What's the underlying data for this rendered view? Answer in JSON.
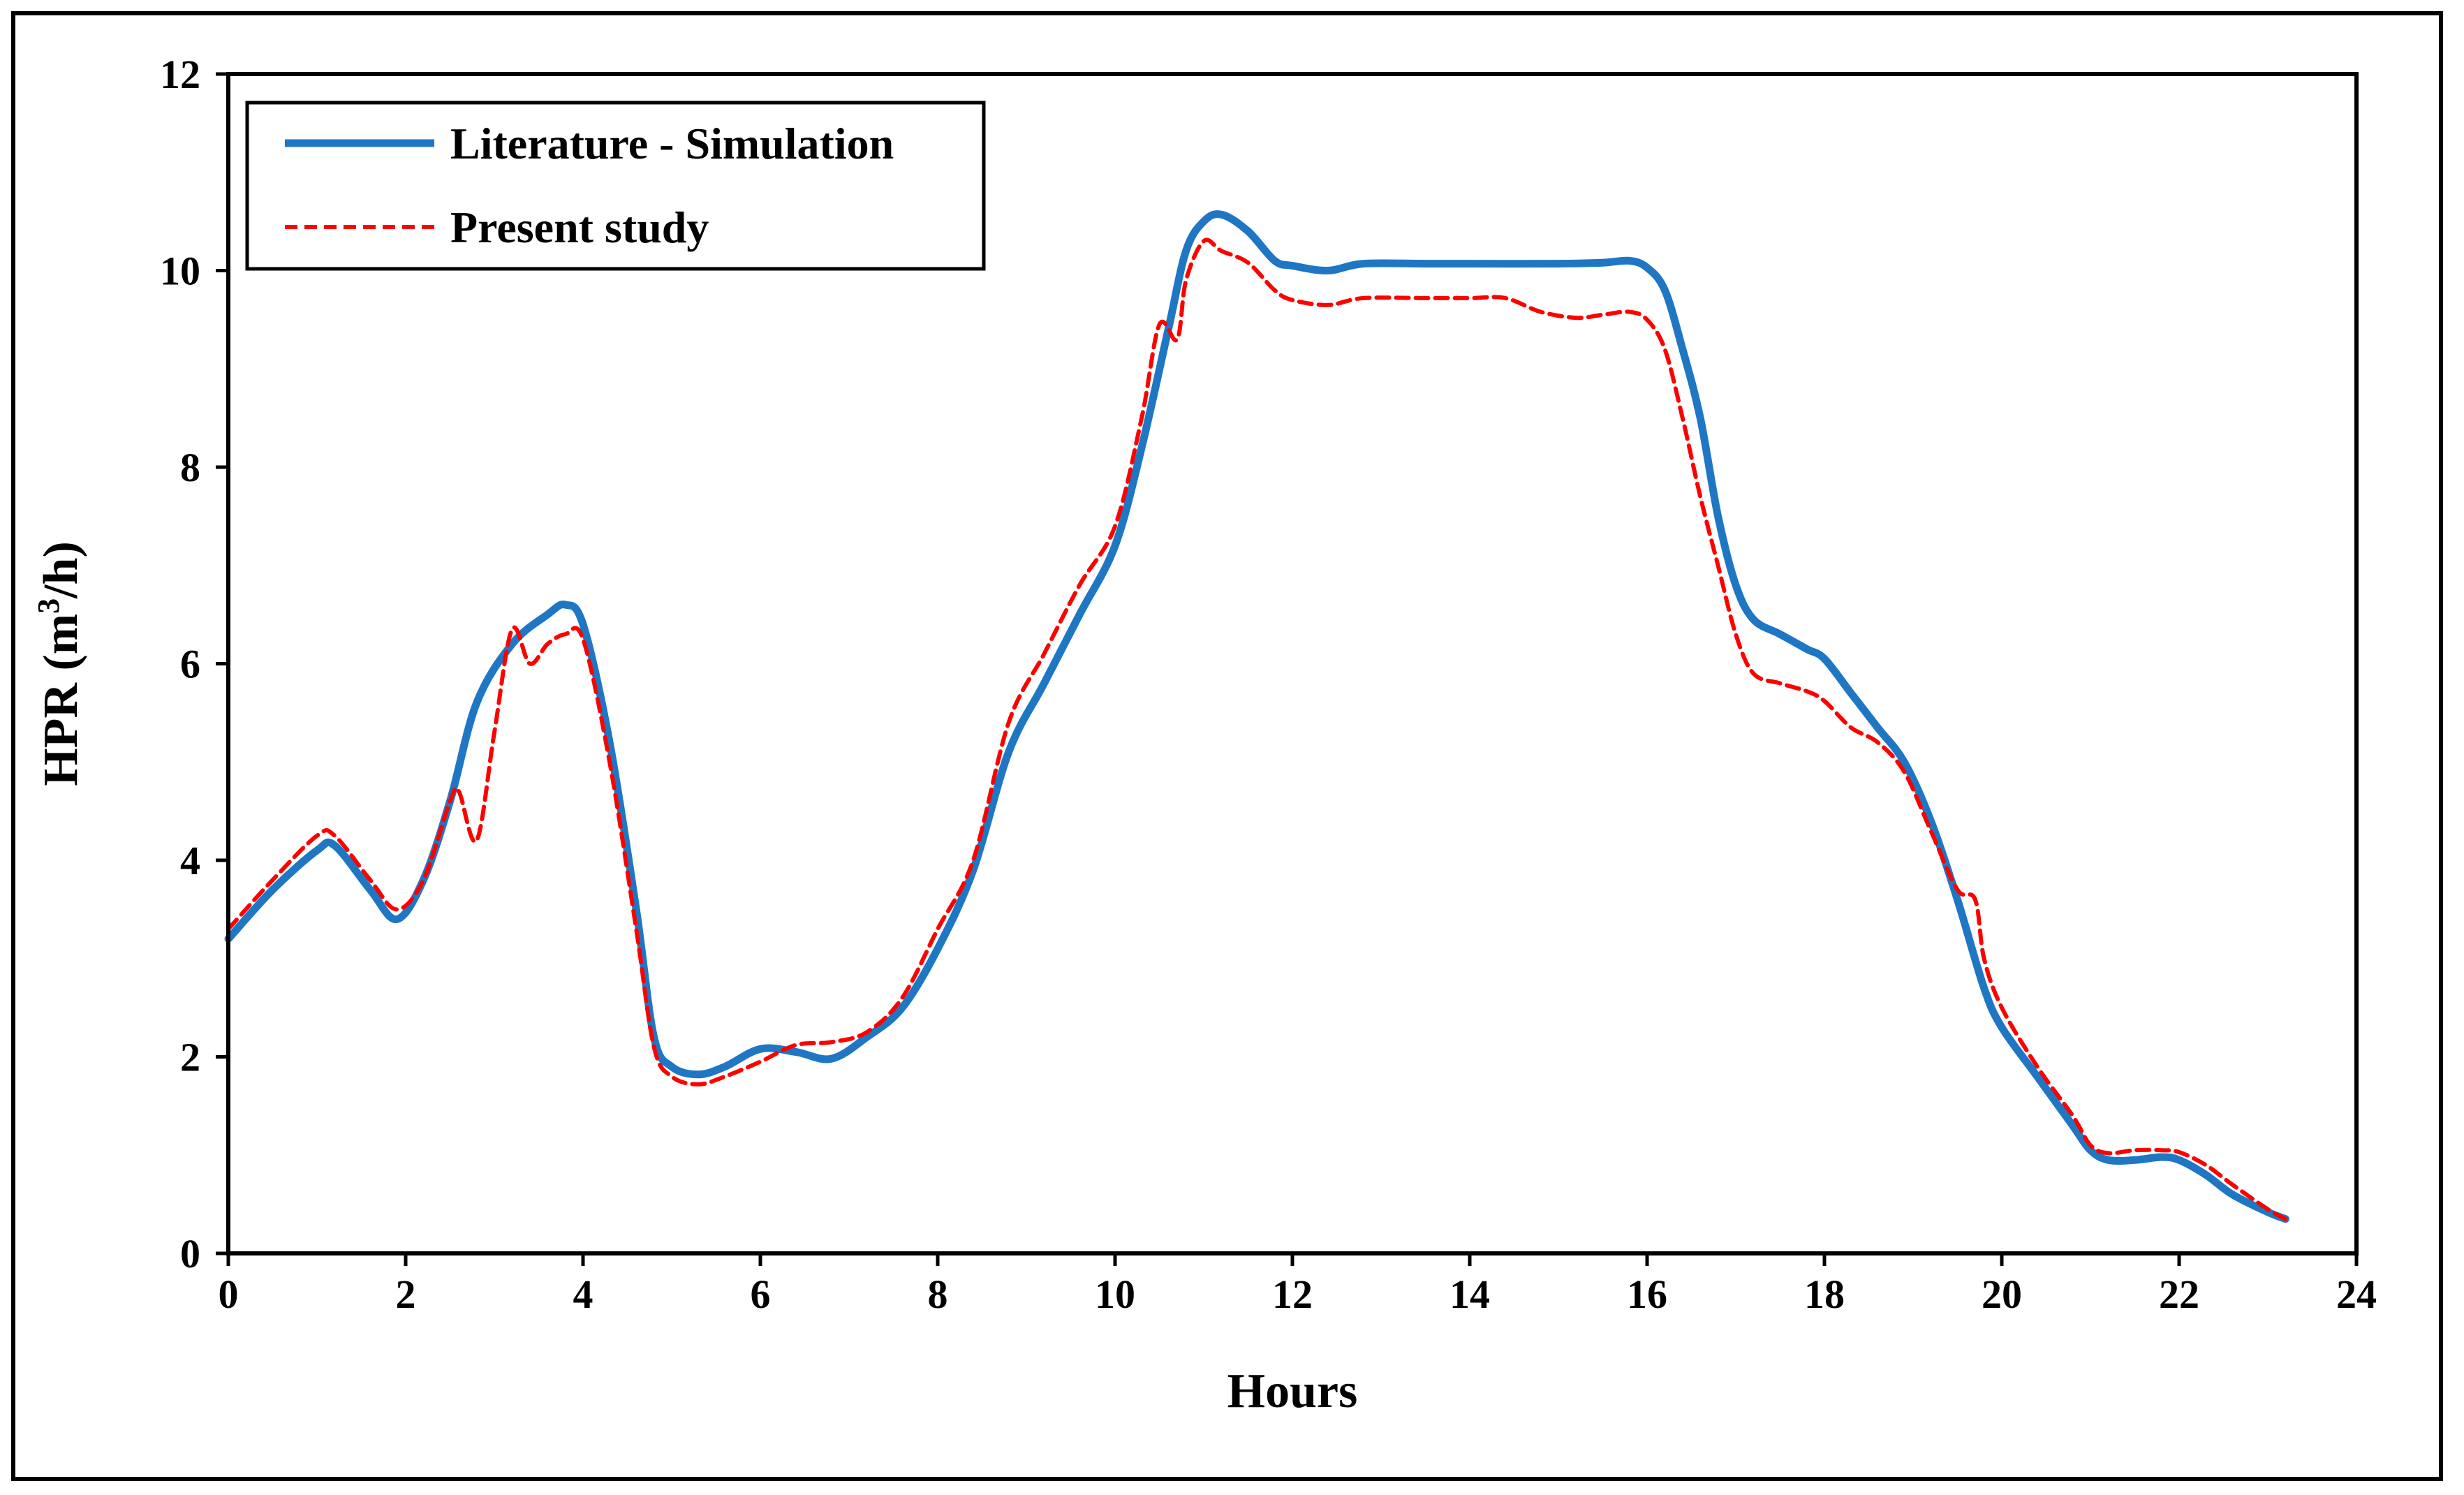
{
  "chart_data": {
    "type": "line",
    "title": "",
    "xlabel": "Hours",
    "ylabel": "HPR (m³/h)",
    "ylabel_main": "HPR (m",
    "ylabel_sup": "3",
    "ylabel_tail": "/h)",
    "xlim": [
      0,
      24
    ],
    "ylim": [
      0,
      12
    ],
    "xticks": [
      0,
      2,
      4,
      6,
      8,
      10,
      12,
      14,
      16,
      18,
      20,
      22,
      24
    ],
    "yticks": [
      0,
      2,
      4,
      6,
      8,
      10,
      12
    ],
    "grid": false,
    "legend_position": "top-left",
    "series": [
      {
        "name": "Literature - Simulation",
        "color": "#1f77c4",
        "style": "solid",
        "x": [
          0,
          0.5,
          1.0,
          1.2,
          1.6,
          1.9,
          2.2,
          2.5,
          2.8,
          3.2,
          3.6,
          3.8,
          4.0,
          4.3,
          4.6,
          4.8,
          5.0,
          5.3,
          5.6,
          6.0,
          6.4,
          6.8,
          7.2,
          7.6,
          8.0,
          8.4,
          8.8,
          9.2,
          9.6,
          10.0,
          10.3,
          10.6,
          10.8,
          11.0,
          11.2,
          11.5,
          11.8,
          12.0,
          12.4,
          12.8,
          13.5,
          14.0,
          15.0,
          15.5,
          15.8,
          16.0,
          16.2,
          16.4,
          16.6,
          16.8,
          17.0,
          17.2,
          17.5,
          17.8,
          18.0,
          18.3,
          18.6,
          18.9,
          19.2,
          19.5,
          19.8,
          20.0,
          20.4,
          20.8,
          21.0,
          21.2,
          21.5,
          21.8,
          22.0,
          22.3,
          22.6,
          23.0,
          23.2
        ],
        "y": [
          3.2,
          3.7,
          4.1,
          4.15,
          3.7,
          3.4,
          3.8,
          4.6,
          5.6,
          6.2,
          6.5,
          6.6,
          6.4,
          5.2,
          3.5,
          2.2,
          1.9,
          1.82,
          1.9,
          2.08,
          2.05,
          1.98,
          2.2,
          2.5,
          3.1,
          3.9,
          5.1,
          5.8,
          6.5,
          7.2,
          8.2,
          9.4,
          10.2,
          10.5,
          10.57,
          10.4,
          10.1,
          10.05,
          10.0,
          10.07,
          10.07,
          10.07,
          10.07,
          10.08,
          10.1,
          10.03,
          9.8,
          9.2,
          8.5,
          7.5,
          6.8,
          6.45,
          6.3,
          6.15,
          6.05,
          5.7,
          5.35,
          5.0,
          4.4,
          3.6,
          2.7,
          2.3,
          1.8,
          1.3,
          1.05,
          0.95,
          0.95,
          0.98,
          0.95,
          0.8,
          0.6,
          0.42,
          0.35
        ]
      },
      {
        "name": "Present study",
        "color": "#ff0000",
        "style": "dashed",
        "x": [
          0,
          0.5,
          1.0,
          1.2,
          1.6,
          1.9,
          2.2,
          2.5,
          2.6,
          2.8,
          3.0,
          3.2,
          3.4,
          3.6,
          3.8,
          4.0,
          4.3,
          4.6,
          4.8,
          5.0,
          5.3,
          5.6,
          6.0,
          6.4,
          6.8,
          7.2,
          7.6,
          8.0,
          8.4,
          8.8,
          9.2,
          9.6,
          10.0,
          10.3,
          10.5,
          10.7,
          10.8,
          11.0,
          11.2,
          11.5,
          11.8,
          12.0,
          12.4,
          12.8,
          13.5,
          14.0,
          14.4,
          14.8,
          15.2,
          15.5,
          15.8,
          16.0,
          16.2,
          16.4,
          16.6,
          16.8,
          17.0,
          17.2,
          17.5,
          17.8,
          18.0,
          18.3,
          18.6,
          18.9,
          19.2,
          19.5,
          19.7,
          19.8,
          20.0,
          20.4,
          20.8,
          21.0,
          21.2,
          21.5,
          21.8,
          22.0,
          22.3,
          22.6,
          23.0,
          23.2
        ],
        "y": [
          3.3,
          3.8,
          4.25,
          4.25,
          3.8,
          3.5,
          3.8,
          4.6,
          4.7,
          4.2,
          5.3,
          6.35,
          6.0,
          6.2,
          6.3,
          6.25,
          5.0,
          3.3,
          2.1,
          1.8,
          1.72,
          1.8,
          1.95,
          2.12,
          2.15,
          2.25,
          2.6,
          3.3,
          4.0,
          5.4,
          6.1,
          6.8,
          7.4,
          8.5,
          9.45,
          9.3,
          9.9,
          10.3,
          10.2,
          10.08,
          9.8,
          9.7,
          9.65,
          9.72,
          9.72,
          9.72,
          9.72,
          9.58,
          9.52,
          9.55,
          9.58,
          9.5,
          9.2,
          8.5,
          7.7,
          7.0,
          6.3,
          5.9,
          5.8,
          5.72,
          5.62,
          5.35,
          5.2,
          4.9,
          4.3,
          3.7,
          3.6,
          3.0,
          2.5,
          1.9,
          1.4,
          1.1,
          1.02,
          1.05,
          1.05,
          1.03,
          0.9,
          0.7,
          0.45,
          0.35
        ]
      }
    ]
  }
}
